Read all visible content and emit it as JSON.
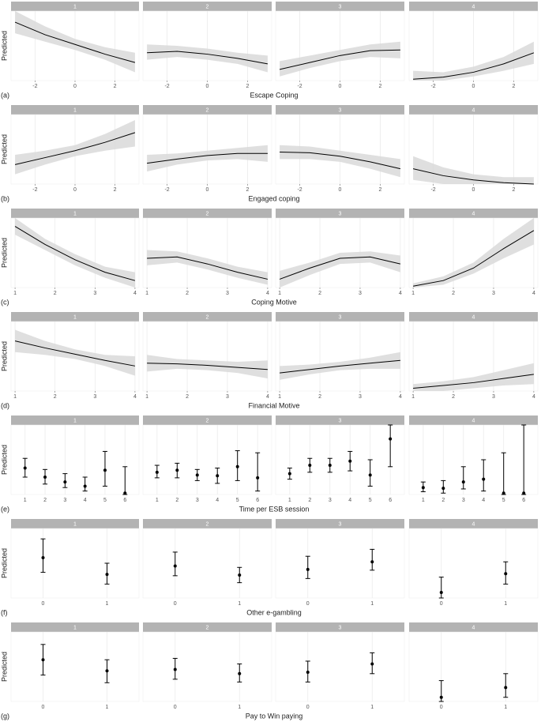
{
  "chart_data": [
    {
      "type": "line",
      "panel": "(a)",
      "xlabel": "Escape Coping",
      "ylabel": "Predicted",
      "color": "#000000",
      "band_color": "#d9d9d9",
      "grid": true,
      "xlim": [
        -3.2,
        3.2
      ],
      "xticks": [
        -2,
        0,
        2
      ],
      "ylim": [
        0,
        1
      ],
      "x": [
        -3,
        -1.5,
        0,
        1.5,
        3
      ],
      "facets": [
        {
          "name": "1",
          "values": [
            0.84,
            0.66,
            0.52,
            0.38,
            0.26
          ],
          "lower": [
            0.68,
            0.56,
            0.44,
            0.3,
            0.12
          ],
          "upper": [
            1,
            0.78,
            0.6,
            0.48,
            0.4
          ]
        },
        {
          "name": "2",
          "values": [
            0.4,
            0.42,
            0.38,
            0.32,
            0.24
          ],
          "lower": [
            0.3,
            0.34,
            0.3,
            0.24,
            0.12
          ],
          "upper": [
            0.52,
            0.5,
            0.46,
            0.4,
            0.36
          ]
        },
        {
          "name": "3",
          "values": [
            0.16,
            0.26,
            0.36,
            0.43,
            0.44
          ],
          "lower": [
            0.06,
            0.18,
            0.28,
            0.34,
            0.32
          ],
          "upper": [
            0.28,
            0.36,
            0.44,
            0.52,
            0.56
          ]
        },
        {
          "name": "4",
          "values": [
            0.02,
            0.05,
            0.12,
            0.24,
            0.4
          ],
          "lower": [
            0,
            0,
            0.06,
            0.14,
            0.24
          ],
          "upper": [
            0.14,
            0.12,
            0.2,
            0.34,
            0.56
          ]
        }
      ]
    },
    {
      "type": "line",
      "panel": "(b)",
      "xlabel": "Engaged coping",
      "ylabel": "Predicted",
      "color": "#000000",
      "band_color": "#d9d9d9",
      "grid": true,
      "xlim": [
        -3.2,
        3.2
      ],
      "xticks": [
        -2,
        0,
        2
      ],
      "ylim": [
        0,
        1
      ],
      "x": [
        -3,
        -1.5,
        0,
        1.5,
        3
      ],
      "facets": [
        {
          "name": "1",
          "values": [
            0.28,
            0.38,
            0.48,
            0.6,
            0.74
          ],
          "lower": [
            0.14,
            0.28,
            0.4,
            0.48,
            0.54
          ],
          "upper": [
            0.42,
            0.48,
            0.56,
            0.72,
            0.92
          ]
        },
        {
          "name": "2",
          "values": [
            0.3,
            0.36,
            0.41,
            0.44,
            0.44
          ],
          "lower": [
            0.18,
            0.28,
            0.34,
            0.36,
            0.32
          ],
          "upper": [
            0.42,
            0.44,
            0.48,
            0.52,
            0.56
          ]
        },
        {
          "name": "3",
          "values": [
            0.46,
            0.45,
            0.4,
            0.32,
            0.22
          ],
          "lower": [
            0.36,
            0.36,
            0.32,
            0.22,
            0.1
          ],
          "upper": [
            0.56,
            0.54,
            0.48,
            0.42,
            0.36
          ]
        },
        {
          "name": "4",
          "values": [
            0.22,
            0.12,
            0.06,
            0.02,
            0
          ],
          "lower": [
            0.06,
            0,
            0,
            0,
            0
          ],
          "upper": [
            0.4,
            0.24,
            0.14,
            0.1,
            0.1
          ]
        }
      ]
    },
    {
      "type": "line",
      "panel": "(c)",
      "xlabel": "Coping Motive",
      "ylabel": "Predicted",
      "color": "#000000",
      "band_color": "#d9d9d9",
      "grid": true,
      "xlim": [
        0.9,
        4.1
      ],
      "xticks": [
        1,
        2,
        3,
        4
      ],
      "ylim": [
        0,
        1
      ],
      "x": [
        1,
        1.75,
        2.5,
        3.25,
        4
      ],
      "facets": [
        {
          "name": "1",
          "values": [
            0.88,
            0.62,
            0.4,
            0.22,
            0.1
          ],
          "lower": [
            0.76,
            0.54,
            0.32,
            0.14,
            0
          ],
          "upper": [
            1,
            0.7,
            0.48,
            0.3,
            0.22
          ]
        },
        {
          "name": "2",
          "values": [
            0.42,
            0.44,
            0.34,
            0.22,
            0.12
          ],
          "lower": [
            0.32,
            0.36,
            0.26,
            0.14,
            0.04
          ],
          "upper": [
            0.54,
            0.52,
            0.42,
            0.3,
            0.22
          ]
        },
        {
          "name": "3",
          "values": [
            0.12,
            0.28,
            0.42,
            0.44,
            0.34
          ],
          "lower": [
            0,
            0.18,
            0.34,
            0.36,
            0.22
          ],
          "upper": [
            0.24,
            0.36,
            0.5,
            0.52,
            0.46
          ]
        },
        {
          "name": "4",
          "values": [
            0.02,
            0.1,
            0.28,
            0.56,
            0.82
          ],
          "lower": [
            0,
            0.04,
            0.2,
            0.42,
            0.62
          ],
          "upper": [
            0.06,
            0.16,
            0.36,
            0.7,
            1
          ]
        }
      ]
    },
    {
      "type": "line",
      "panel": "(d)",
      "xlabel": "Financial Motive",
      "ylabel": "Predicted",
      "color": "#000000",
      "band_color": "#d9d9d9",
      "grid": true,
      "xlim": [
        0.9,
        4.1
      ],
      "xticks": [
        1,
        2,
        3,
        4
      ],
      "ylim": [
        0,
        1
      ],
      "x": [
        1,
        1.75,
        2.5,
        3.25,
        4
      ],
      "facets": [
        {
          "name": "1",
          "values": [
            0.72,
            0.62,
            0.53,
            0.44,
            0.36
          ],
          "lower": [
            0.56,
            0.52,
            0.46,
            0.36,
            0.22
          ],
          "upper": [
            0.88,
            0.72,
            0.6,
            0.52,
            0.5
          ]
        },
        {
          "name": "2",
          "values": [
            0.4,
            0.39,
            0.37,
            0.34,
            0.31
          ],
          "lower": [
            0.28,
            0.32,
            0.3,
            0.26,
            0.18
          ],
          "upper": [
            0.52,
            0.46,
            0.44,
            0.42,
            0.44
          ]
        },
        {
          "name": "3",
          "values": [
            0.26,
            0.31,
            0.36,
            0.4,
            0.44
          ],
          "lower": [
            0.16,
            0.24,
            0.3,
            0.32,
            0.32
          ],
          "upper": [
            0.36,
            0.38,
            0.42,
            0.48,
            0.56
          ]
        },
        {
          "name": "4",
          "values": [
            0.04,
            0.08,
            0.12,
            0.18,
            0.24
          ],
          "lower": [
            0,
            0,
            0.04,
            0.08,
            0.1
          ],
          "upper": [
            0.1,
            0.14,
            0.2,
            0.3,
            0.4
          ]
        }
      ]
    },
    {
      "type": "errorbar",
      "panel": "(e)",
      "xlabel": "Time per ESB session",
      "ylabel": "Predicted",
      "color": "#000000",
      "grid": true,
      "categories": [
        "1",
        "2",
        "3",
        "4",
        "5",
        "6"
      ],
      "ylim": [
        0,
        1
      ],
      "facets": [
        {
          "name": "1",
          "values": [
            0.38,
            0.25,
            0.18,
            0.12,
            0.35,
            0.02
          ],
          "lower": [
            0.25,
            0.15,
            0.1,
            0.05,
            0.12,
            0
          ],
          "upper": [
            0.52,
            0.36,
            0.3,
            0.25,
            0.62,
            0.4
          ]
        },
        {
          "name": "2",
          "values": [
            0.32,
            0.35,
            0.28,
            0.27,
            0.4,
            0.24
          ],
          "lower": [
            0.24,
            0.24,
            0.2,
            0.16,
            0.2,
            0.05
          ],
          "upper": [
            0.42,
            0.45,
            0.36,
            0.38,
            0.63,
            0.6
          ]
        },
        {
          "name": "3",
          "values": [
            0.3,
            0.42,
            0.42,
            0.48,
            0.28,
            0.8
          ],
          "lower": [
            0.22,
            0.32,
            0.32,
            0.34,
            0.12,
            0.4
          ],
          "upper": [
            0.38,
            0.52,
            0.52,
            0.62,
            0.5,
            1
          ]
        },
        {
          "name": "4",
          "values": [
            0.1,
            0.09,
            0.18,
            0.22,
            0.02,
            0.02
          ],
          "lower": [
            0.04,
            0.02,
            0.08,
            0.05,
            0,
            0
          ],
          "upper": [
            0.18,
            0.2,
            0.4,
            0.5,
            0.6,
            1
          ]
        }
      ]
    },
    {
      "type": "errorbar",
      "panel": "(f)",
      "xlabel": "Other e-gambling",
      "ylabel": "Predicted",
      "color": "#000000",
      "grid": true,
      "categories": [
        "0",
        "1"
      ],
      "ylim": [
        0,
        1
      ],
      "facets": [
        {
          "name": "1",
          "values": [
            0.58,
            0.34
          ],
          "lower": [
            0.37,
            0.2
          ],
          "upper": [
            0.85,
            0.5
          ]
        },
        {
          "name": "2",
          "values": [
            0.46,
            0.33
          ],
          "lower": [
            0.32,
            0.22
          ],
          "upper": [
            0.66,
            0.44
          ]
        },
        {
          "name": "3",
          "values": [
            0.41,
            0.52
          ],
          "lower": [
            0.28,
            0.4
          ],
          "upper": [
            0.6,
            0.7
          ]
        },
        {
          "name": "4",
          "values": [
            0.08,
            0.35
          ],
          "lower": [
            0,
            0.2
          ],
          "upper": [
            0.3,
            0.52
          ]
        }
      ]
    },
    {
      "type": "errorbar",
      "panel": "(g)",
      "xlabel": "Pay to Win paying",
      "ylabel": "Predicted",
      "color": "#000000",
      "grid": true,
      "categories": [
        "0",
        "1"
      ],
      "ylim": [
        0,
        1
      ],
      "facets": [
        {
          "name": "1",
          "values": [
            0.6,
            0.44
          ],
          "lower": [
            0.38,
            0.27
          ],
          "upper": [
            0.82,
            0.6
          ]
        },
        {
          "name": "2",
          "values": [
            0.46,
            0.4
          ],
          "lower": [
            0.32,
            0.28
          ],
          "upper": [
            0.62,
            0.54
          ]
        },
        {
          "name": "3",
          "values": [
            0.42,
            0.54
          ],
          "lower": [
            0.28,
            0.4
          ],
          "upper": [
            0.58,
            0.7
          ]
        },
        {
          "name": "4",
          "values": [
            0.06,
            0.2
          ],
          "lower": [
            0,
            0.06
          ],
          "upper": [
            0.3,
            0.4
          ]
        }
      ]
    }
  ]
}
